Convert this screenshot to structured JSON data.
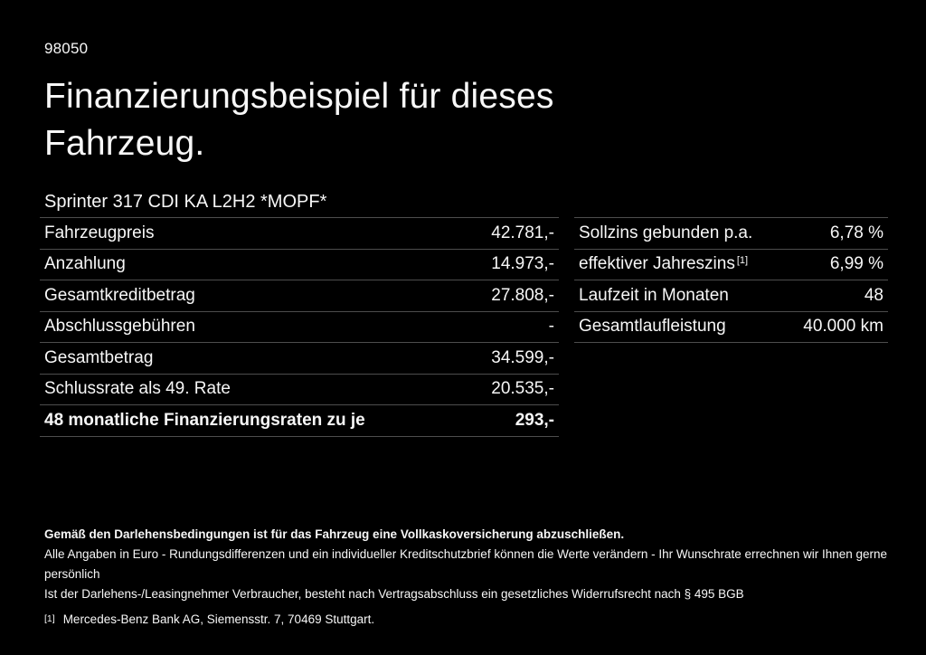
{
  "page": {
    "doc_number": "98050",
    "title_line1": "Finanzierungsbeispiel für dieses",
    "title_line2": "Fahrzeug.",
    "subtitle": "Sprinter 317 CDI KA L2H2 *MOPF*"
  },
  "colors": {
    "background": "#000000",
    "text": "#f7f7f7",
    "divider": "#4d4d4d"
  },
  "finance_table": {
    "rows": [
      {
        "label": "Fahrzeugpreis",
        "value": "42.781,-"
      },
      {
        "label": "Anzahlung",
        "value": "14.973,-"
      },
      {
        "label": "Gesamtkreditbetrag",
        "value": "27.808,-"
      },
      {
        "label": "Abschlussgebühren",
        "value": "-"
      },
      {
        "label": "Gesamtbetrag",
        "value": "34.599,-"
      },
      {
        "label": "Schlussrate als 49. Rate",
        "value": "20.535,-"
      },
      {
        "label": "48 monatliche Finanzierungsraten zu je",
        "value": "293,-"
      }
    ]
  },
  "conditions_table": {
    "rows": [
      {
        "label": "Sollzins gebunden p.a.",
        "value": "6,78 %"
      },
      {
        "label": "effektiver Jahreszins",
        "sup": "[1]",
        "value": "6,99 %"
      },
      {
        "label": "Laufzeit in Monaten",
        "value": "48"
      },
      {
        "label": "Gesamtlaufleistung",
        "value": "40.000 km"
      }
    ]
  },
  "footer": {
    "insurance_note": "Gemäß den Darlehensbedingungen ist für das Fahrzeug eine Vollkaskoversicherung abzuschließen.",
    "disclaimer_line1": "Alle Angaben in Euro - Rundungsdifferenzen und ein individueller Kreditschutzbrief können die Werte verändern - Ihr Wunschrate errechnen wir Ihnen gerne persönlich",
    "disclaimer_line2": "Ist der Darlehens-/Leasingnehmer Verbraucher, besteht nach Vertragsabschluss ein gesetzliches Widerrufsrecht nach § 495 BGB",
    "footnote_marker": "[1]",
    "footnote_text": "Mercedes-Benz Bank AG, Siemensstr. 7, 70469 Stuttgart."
  }
}
